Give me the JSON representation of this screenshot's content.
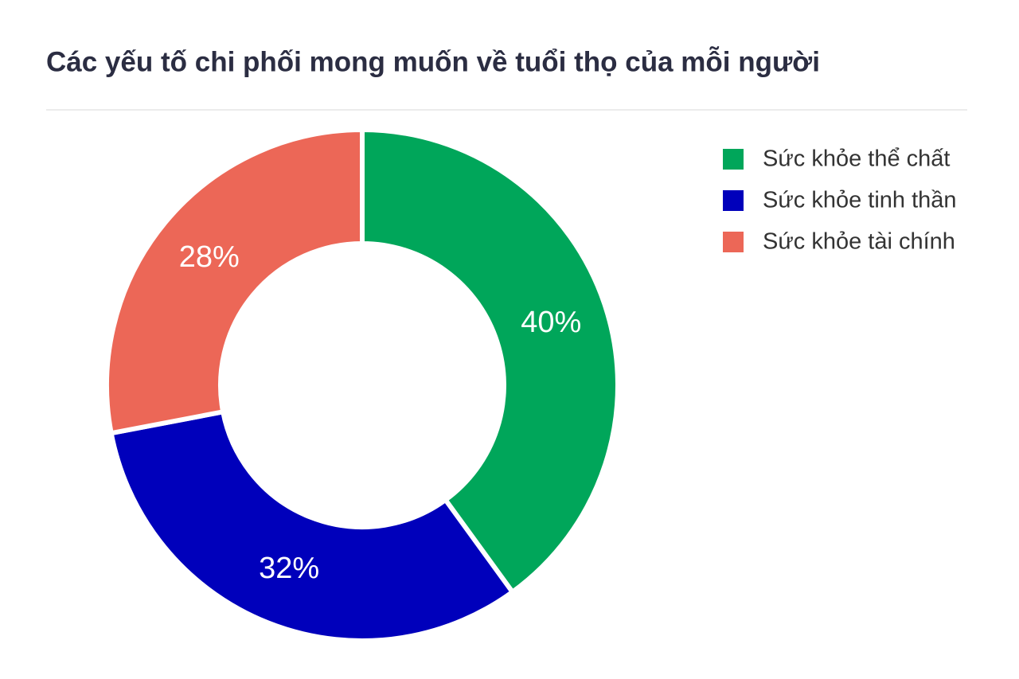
{
  "chart_data": {
    "type": "donut",
    "title": "Các yếu tố chi phối mong muốn về tuổi thọ của mỗi người",
    "categories": [
      "Sức khỏe thể chất",
      "Sức khỏe tinh thần",
      "Sức khỏe tài chính"
    ],
    "values": [
      40,
      32,
      28
    ],
    "value_labels": [
      "40%",
      "32%",
      "28%"
    ],
    "colors": [
      "#00a65a",
      "#0000bb",
      "#ec6757"
    ],
    "legend": "right"
  }
}
